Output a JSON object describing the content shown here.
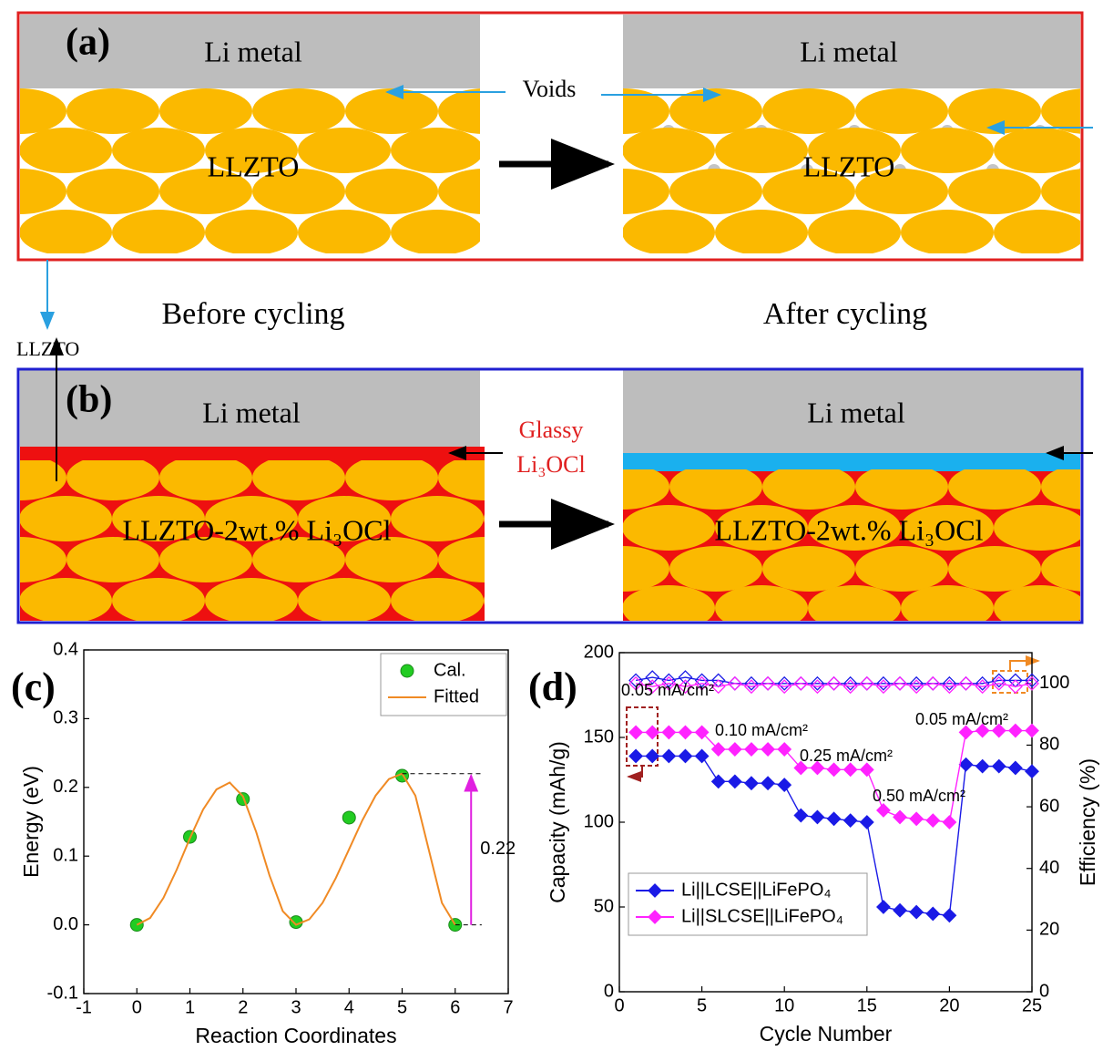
{
  "panel_a": {
    "label": "(a)",
    "voids": "Voids",
    "side_label": "LLZTO",
    "left": {
      "top": "Li metal",
      "body": "LLZTO",
      "caption": "Before cycling"
    },
    "right": {
      "top": "Li metal",
      "body": "LLZTO",
      "caption": "After cycling"
    }
  },
  "panel_b": {
    "label": "(b)",
    "interlayer": [
      "Glassy",
      "Li₃OCl"
    ],
    "left": {
      "top": "Li metal",
      "body": "LLZTO-2wt.% Li₃OCl"
    },
    "right": {
      "top": "Li metal",
      "body": "LLZTO-2wt.% Li₃OCl"
    }
  },
  "chart_data": [
    {
      "type": "line",
      "panel_label": "(c)",
      "xlabel": "Reaction Coordinates",
      "ylabel": "Energy (eV)",
      "xlim": [
        -1,
        7
      ],
      "ylim": [
        -0.1,
        0.4
      ],
      "xticks": [
        -1,
        0,
        1,
        2,
        3,
        4,
        5,
        6,
        7
      ],
      "yticks": [
        -0.1,
        {
          "value": 0,
          "label": "0.0"
        },
        0.1,
        0.2,
        0.3,
        0.4
      ],
      "legend": "upper right",
      "barrier": 0.22,
      "series": [
        {
          "name": "Cal.",
          "color": "#22cc22",
          "marker": "circle",
          "line": false,
          "x": [
            0,
            1,
            2,
            3,
            4,
            5,
            6
          ],
          "values": [
            0,
            0.128,
            0.183,
            0.004,
            0.156,
            0.217,
            0
          ]
        },
        {
          "name": "Fitted",
          "color": "#f08a24",
          "marker": "none",
          "line": true,
          "x": [
            0,
            0.25,
            0.5,
            0.75,
            1,
            1.25,
            1.5,
            1.75,
            2,
            2.25,
            2.5,
            2.75,
            3,
            3.25,
            3.5,
            3.75,
            4,
            4.25,
            4.5,
            4.75,
            5,
            5.25,
            5.5,
            5.75,
            6
          ],
          "values": [
            0,
            0.01,
            0.039,
            0.08,
            0.126,
            0.168,
            0.197,
            0.207,
            0.187,
            0.135,
            0.072,
            0.02,
            0,
            0.008,
            0.032,
            0.068,
            0.11,
            0.152,
            0.188,
            0.212,
            0.22,
            0.188,
            0.11,
            0.032,
            0
          ]
        }
      ]
    },
    {
      "type": "line",
      "panel_label": "(d)",
      "xlabel": "Cycle Number",
      "ylabel": "Capacity (mAh/g)",
      "y2label": "Efficiency (%)",
      "xlim": [
        0,
        25
      ],
      "ylim": [
        0,
        200
      ],
      "y2lim": [
        0,
        110
      ],
      "xticks": [
        0,
        5,
        10,
        15,
        20,
        25
      ],
      "yticks": [
        0,
        50,
        100,
        150,
        200
      ],
      "y2ticks": [
        0,
        20,
        40,
        60,
        80,
        100
      ],
      "legend": "lower left",
      "x": [
        1,
        2,
        3,
        4,
        5,
        6,
        7,
        8,
        9,
        10,
        11,
        12,
        13,
        14,
        15,
        16,
        17,
        18,
        19,
        20,
        21,
        22,
        23,
        24,
        25
      ],
      "series": [
        {
          "name": "Li||LCSE||LiFePO₄",
          "color": "#1a1ae6",
          "marker": "diamond",
          "line": true,
          "values": [
            139,
            139,
            139,
            139,
            139,
            124,
            124,
            123,
            123,
            122,
            104,
            103,
            102,
            101,
            100,
            50,
            48,
            47,
            46,
            45,
            134,
            133,
            133,
            132,
            130
          ]
        },
        {
          "name": "Li||SLCSE||LiFePO₄",
          "color": "#ff22ff",
          "marker": "diamond",
          "line": true,
          "values": [
            153,
            153,
            153,
            153,
            153,
            143,
            143,
            143,
            143,
            143,
            132,
            132,
            131,
            131,
            131,
            107,
            103,
            102,
            101,
            100,
            153,
            154,
            154,
            154,
            154
          ]
        },
        {
          "color": "#1a1ae6",
          "marker": "diamond-open",
          "line": true,
          "axis": "y2",
          "values": [
            101,
            102,
            101,
            102,
            101,
            101,
            100,
            100,
            100,
            100,
            100,
            100,
            100,
            100,
            100,
            100,
            100,
            100,
            100,
            100,
            100,
            100,
            101,
            101,
            101
          ]
        },
        {
          "color": "#ff22ff",
          "marker": "diamond-open",
          "line": true,
          "axis": "y2",
          "values": [
            100,
            99,
            100,
            99,
            100,
            99,
            100,
            99,
            100,
            99,
            100,
            99,
            100,
            99,
            100,
            99,
            100,
            99,
            100,
            99,
            100,
            99,
            100,
            99,
            100
          ]
        }
      ],
      "annotations": [
        "0.05 mA/cm²",
        "0.10 mA/cm²",
        "0.25 mA/cm²",
        "0.50 mA/cm²",
        "0.05 mA/cm²"
      ]
    }
  ]
}
